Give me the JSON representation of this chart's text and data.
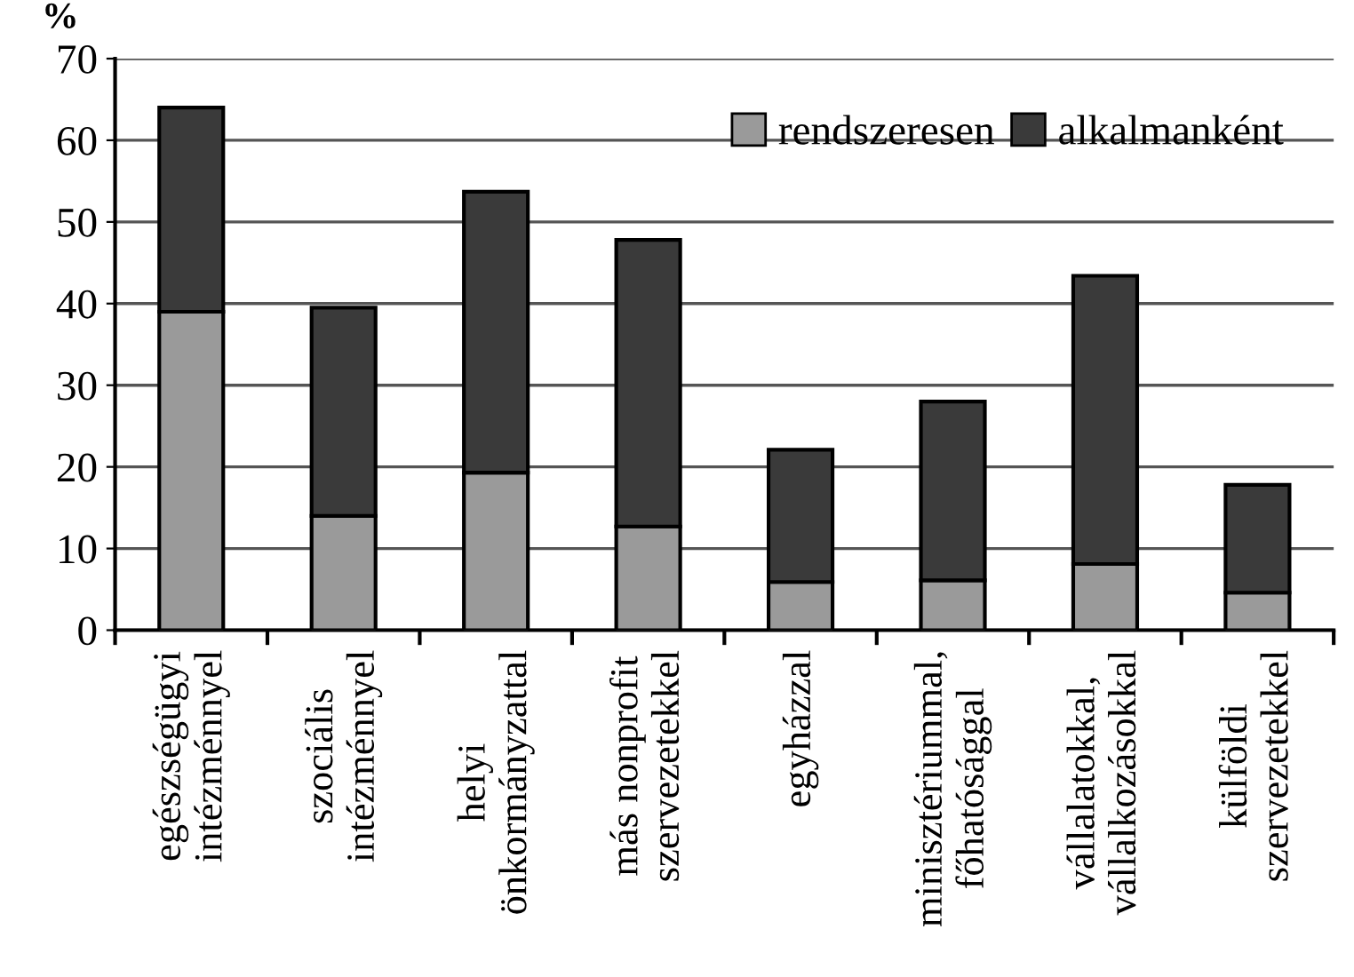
{
  "chart_data": {
    "type": "bar",
    "stacked": true,
    "ylabel": "%",
    "categories": [
      "egészségügyi\nintézménnyel",
      "szociális\nintézménnyel",
      "helyi\nönkormányzattal",
      "más nonprofit\nszervezetekkel",
      "egyházzal",
      "minisztériummal,\nfőhatósággal",
      "vállalatokkal,\nvállalkozásokkal",
      "külföldi\nszervezetekkel"
    ],
    "series": [
      {
        "name": "rendszeresen",
        "color": "#9a9a9a",
        "values": [
          39,
          14,
          19.3,
          12.7,
          5.9,
          6.1,
          8.1,
          4.6
        ]
      },
      {
        "name": "alkalmanként",
        "color": "#3a3a3a",
        "values": [
          25,
          25.5,
          34.4,
          35.1,
          16.2,
          21.9,
          35.3,
          13.2
        ]
      }
    ],
    "ylim": [
      0,
      70
    ],
    "yticks": [
      0,
      10,
      20,
      30,
      40,
      50,
      60,
      70
    ],
    "grid": "y",
    "legend": "top right"
  }
}
